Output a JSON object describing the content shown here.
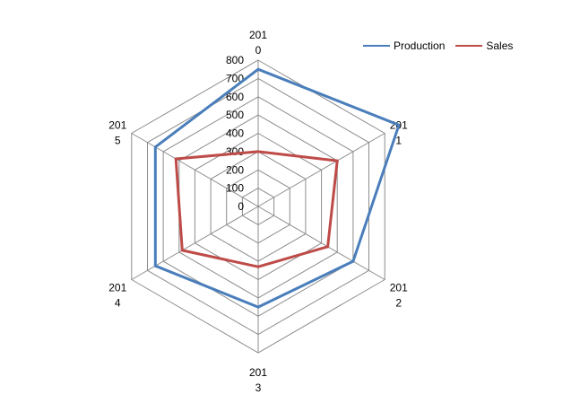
{
  "chart_data": {
    "type": "radar",
    "categories": [
      "2010",
      "2011",
      "2012",
      "2013",
      "2014",
      "2015"
    ],
    "category_labels": [
      [
        "201",
        "0"
      ],
      [
        "201",
        "1"
      ],
      [
        "201",
        "2"
      ],
      [
        "201",
        "3"
      ],
      [
        "201",
        "4"
      ],
      [
        "201",
        "5"
      ]
    ],
    "ylim": [
      0,
      800
    ],
    "ticks": [
      "0",
      "100",
      "200",
      "300",
      "400",
      "500",
      "600",
      "700",
      "800"
    ],
    "tick_values": [
      0,
      100,
      200,
      300,
      400,
      500,
      600,
      700,
      800
    ],
    "grid": true,
    "legend_position": "top-right",
    "series": [
      {
        "name": "Production",
        "color": "#4a7ebb",
        "values": [
          750,
          890,
          600,
          550,
          650,
          650
        ]
      },
      {
        "name": "Sales",
        "color": "#be4b48",
        "values": [
          300,
          500,
          440,
          330,
          480,
          520
        ]
      }
    ]
  }
}
